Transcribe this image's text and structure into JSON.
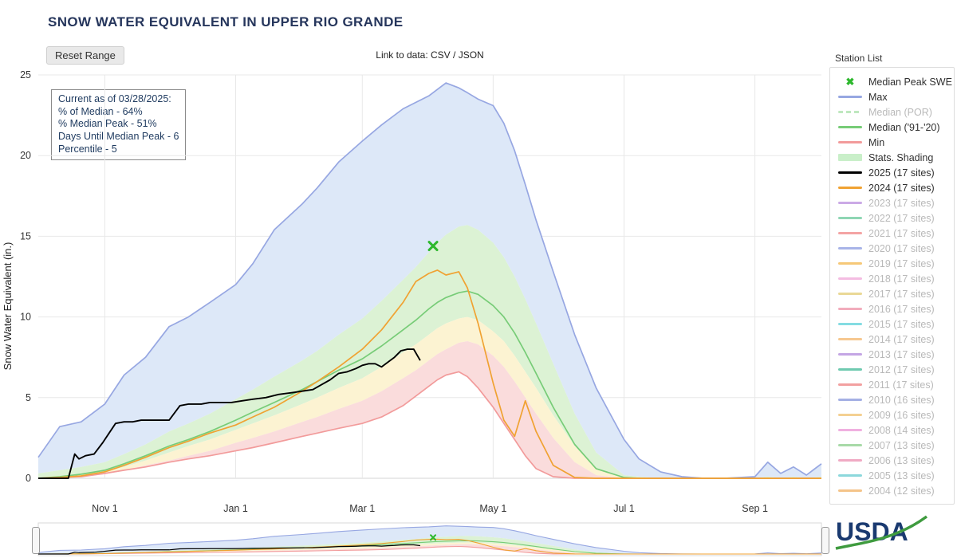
{
  "header": {
    "title": "SNOW WATER EQUIVALENT IN UPPER RIO GRANDE",
    "reset_button": "Reset Range",
    "link_prefix": "Link to data: ",
    "csv_label": "CSV",
    "link_separator": " / ",
    "json_label": "JSON",
    "station_list_label": "Station List"
  },
  "info_box": {
    "lines": [
      "Current as of 03/28/2025:",
      "% of Median - 64%",
      "% Median Peak - 51%",
      "Days Until Median Peak - 6",
      "Percentile - 5"
    ]
  },
  "footer": {
    "logo_text": "USDA"
  },
  "legend": {
    "items": [
      {
        "label": "Median Peak SWE",
        "type": "marker",
        "color": "#2db82d",
        "active": true
      },
      {
        "label": "Max",
        "type": "line",
        "color": "#97a7e2",
        "active": true
      },
      {
        "label": "Median (POR)",
        "type": "dash",
        "color": "#bfe8bf",
        "active": false
      },
      {
        "label": "Median ('91-'20)",
        "type": "line",
        "color": "#77cc77",
        "active": true
      },
      {
        "label": "Min",
        "type": "line",
        "color": "#f29b9b",
        "active": true
      },
      {
        "label": "Stats. Shading",
        "type": "patch",
        "color": "#c9efc9",
        "active": true
      },
      {
        "label": "2025 (17 sites)",
        "type": "line",
        "color": "#000000",
        "active": true
      },
      {
        "label": "2024 (17 sites)",
        "type": "line",
        "color": "#f0a232",
        "active": true
      },
      {
        "label": "2023 (17 sites)",
        "type": "line",
        "color": "#cbaae6",
        "active": false
      },
      {
        "label": "2022 (17 sites)",
        "type": "line",
        "color": "#8fd6b4",
        "active": false
      },
      {
        "label": "2021 (17 sites)",
        "type": "line",
        "color": "#f4a4a4",
        "active": false
      },
      {
        "label": "2020 (17 sites)",
        "type": "line",
        "color": "#a8b4e8",
        "active": false
      },
      {
        "label": "2019 (17 sites)",
        "type": "line",
        "color": "#f6c878",
        "active": false
      },
      {
        "label": "2018 (17 sites)",
        "type": "line",
        "color": "#f4bce2",
        "active": false
      },
      {
        "label": "2017 (17 sites)",
        "type": "line",
        "color": "#ead896",
        "active": false
      },
      {
        "label": "2016 (17 sites)",
        "type": "line",
        "color": "#f2acbc",
        "active": false
      },
      {
        "label": "2015 (17 sites)",
        "type": "line",
        "color": "#84dce2",
        "active": false
      },
      {
        "label": "2014 (17 sites)",
        "type": "line",
        "color": "#f6c890",
        "active": false
      },
      {
        "label": "2013 (17 sites)",
        "type": "line",
        "color": "#c4a6e4",
        "active": false
      },
      {
        "label": "2012 (17 sites)",
        "type": "line",
        "color": "#6fcab0",
        "active": false
      },
      {
        "label": "2011 (17 sites)",
        "type": "line",
        "color": "#f2a0a0",
        "active": false
      },
      {
        "label": "2010 (16 sites)",
        "type": "line",
        "color": "#a4b0e4",
        "active": false
      },
      {
        "label": "2009 (16 sites)",
        "type": "line",
        "color": "#f4d092",
        "active": false
      },
      {
        "label": "2008 (14 sites)",
        "type": "line",
        "color": "#f0b0e0",
        "active": false
      },
      {
        "label": "2007 (13 sites)",
        "type": "line",
        "color": "#a8daa8",
        "active": false
      },
      {
        "label": "2006 (13 sites)",
        "type": "line",
        "color": "#f0aac4",
        "active": false
      },
      {
        "label": "2005 (13 sites)",
        "type": "line",
        "color": "#8cd8dc",
        "active": false
      },
      {
        "label": "2004 (12 sites)",
        "type": "line",
        "color": "#f4c48a",
        "active": false
      }
    ]
  },
  "chart_data": {
    "type": "line",
    "title": "SNOW WATER EQUIVALENT IN UPPER RIO GRANDE",
    "xlabel": "",
    "ylabel": "Snow Water Equivalent (in.)",
    "ylim": [
      0,
      25
    ],
    "y_ticks": [
      0,
      5,
      10,
      15,
      20,
      25
    ],
    "x_unit": "days since Oct 1 (water year)",
    "xlim_days": [
      0,
      365
    ],
    "x_ticks": [
      {
        "day": 31,
        "label": "Nov 1"
      },
      {
        "day": 92,
        "label": "Jan 1"
      },
      {
        "day": 151,
        "label": "Mar 1"
      },
      {
        "day": 212,
        "label": "May 1"
      },
      {
        "day": 273,
        "label": "Jul 1"
      },
      {
        "day": 334,
        "label": "Sep 1"
      }
    ],
    "grid": true,
    "legend_position": "right",
    "median_peak_marker": {
      "day": 184,
      "value": 14.4,
      "color": "#2db82d"
    },
    "days": [
      0,
      10,
      20,
      31,
      40,
      50,
      61,
      70,
      80,
      92,
      100,
      110,
      123,
      130,
      140,
      151,
      160,
      170,
      176,
      182,
      186,
      190,
      196,
      200,
      205,
      212,
      217,
      222,
      227,
      232,
      240,
      250,
      260,
      273,
      280,
      290,
      300,
      310,
      320,
      334,
      340,
      346,
      352,
      358,
      365
    ],
    "bands": [
      {
        "name": "max-to-p70",
        "upper": "max",
        "lower": "p70",
        "color": "#dde8f8"
      },
      {
        "name": "p70-to-p30",
        "upper": "p70",
        "lower": "p30",
        "color": "#dcf2d4"
      },
      {
        "name": "p30-to-p10",
        "upper": "p30",
        "lower": "p10",
        "color": "#fcf3d2"
      },
      {
        "name": "p10-to-min",
        "upper": "p10",
        "lower": "min",
        "color": "#fadcdc"
      }
    ],
    "series": {
      "max": {
        "label": "Max",
        "color": "#97a7e2",
        "width": 1.7,
        "values": [
          1.3,
          3.2,
          3.5,
          4.6,
          6.4,
          7.5,
          9.4,
          10.0,
          10.9,
          12.0,
          13.3,
          15.4,
          17.0,
          18.0,
          19.6,
          20.9,
          21.9,
          22.9,
          23.3,
          23.7,
          24.1,
          24.5,
          24.2,
          23.9,
          23.5,
          23.1,
          22.0,
          20.3,
          18.2,
          16.0,
          12.8,
          8.9,
          5.6,
          2.4,
          1.2,
          0.4,
          0.1,
          0,
          0,
          0.1,
          1.0,
          0.3,
          0.7,
          0.2,
          0.9
        ]
      },
      "p70": {
        "label": "70th percentile band edge",
        "color": "none",
        "width": 0,
        "values": [
          0.3,
          0.5,
          0.7,
          1.0,
          1.5,
          2.1,
          2.9,
          3.4,
          4.0,
          4.9,
          5.5,
          6.3,
          7.3,
          7.9,
          8.9,
          9.9,
          11.0,
          12.3,
          13.1,
          14.0,
          14.6,
          15.1,
          15.6,
          15.7,
          15.4,
          14.6,
          13.7,
          12.5,
          11.1,
          9.6,
          7.1,
          4.0,
          1.6,
          0.2,
          0.1,
          0,
          0,
          0,
          0,
          0,
          0.1,
          0,
          0.1,
          0,
          0.1
        ]
      },
      "p30": {
        "label": "30th percentile band edge",
        "color": "none",
        "width": 0,
        "values": [
          0.05,
          0.1,
          0.2,
          0.4,
          0.7,
          1.1,
          1.6,
          2.0,
          2.4,
          3.0,
          3.4,
          3.9,
          4.6,
          5.0,
          5.6,
          6.2,
          6.9,
          7.8,
          8.3,
          8.9,
          9.3,
          9.6,
          9.9,
          10.0,
          9.8,
          9.1,
          8.5,
          7.6,
          6.6,
          5.6,
          3.9,
          2.0,
          0.6,
          0.05,
          0,
          0,
          0,
          0,
          0,
          0,
          0,
          0,
          0,
          0,
          0
        ]
      },
      "p10": {
        "label": "10th percentile band edge",
        "color": "none",
        "width": 0,
        "values": [
          0,
          0.05,
          0.1,
          0.25,
          0.5,
          0.8,
          1.1,
          1.4,
          1.7,
          2.2,
          2.5,
          2.9,
          3.5,
          3.8,
          4.3,
          4.8,
          5.4,
          6.2,
          6.7,
          7.3,
          7.7,
          8.0,
          8.4,
          8.5,
          8.3,
          7.6,
          6.9,
          6.0,
          5.0,
          4.0,
          2.5,
          1.0,
          0.2,
          0,
          0,
          0,
          0,
          0,
          0,
          0,
          0,
          0,
          0,
          0,
          0
        ]
      },
      "min": {
        "label": "Min",
        "color": "#f29b9b",
        "width": 1.7,
        "values": [
          0,
          0.05,
          0.1,
          0.3,
          0.5,
          0.7,
          1.0,
          1.2,
          1.4,
          1.7,
          1.9,
          2.2,
          2.6,
          2.8,
          3.1,
          3.4,
          3.8,
          4.5,
          5.1,
          5.7,
          6.1,
          6.4,
          6.6,
          6.3,
          5.6,
          4.4,
          3.4,
          2.4,
          1.4,
          0.6,
          0.1,
          0,
          0,
          0,
          0,
          0,
          0,
          0,
          0,
          0,
          0,
          0,
          0,
          0,
          0
        ]
      },
      "median": {
        "label": "Median ('91-'20)",
        "color": "#77cc77",
        "width": 1.7,
        "values": [
          0,
          0.1,
          0.25,
          0.5,
          0.9,
          1.4,
          2.0,
          2.4,
          2.9,
          3.6,
          4.1,
          4.7,
          5.5,
          6.0,
          6.7,
          7.4,
          8.2,
          9.2,
          9.8,
          10.5,
          10.9,
          11.2,
          11.5,
          11.6,
          11.4,
          10.7,
          10.0,
          9.0,
          7.8,
          6.5,
          4.4,
          2.1,
          0.6,
          0.05,
          0,
          0,
          0,
          0,
          0,
          0,
          0,
          0,
          0,
          0,
          0
        ]
      },
      "y2024": {
        "label": "2024 (17 sites)",
        "color": "#f0a232",
        "width": 1.7,
        "values": [
          0,
          0.05,
          0.15,
          0.4,
          0.8,
          1.3,
          1.9,
          2.3,
          2.8,
          3.3,
          3.8,
          4.4,
          5.4,
          6.0,
          6.9,
          8.0,
          9.2,
          10.9,
          12.2,
          12.7,
          12.9,
          12.6,
          12.8,
          11.8,
          9.6,
          5.9,
          3.6,
          2.6,
          4.8,
          2.9,
          0.8,
          0.05,
          0,
          0,
          0,
          0,
          0,
          0,
          0,
          0,
          0,
          0,
          0,
          0,
          0
        ]
      },
      "y2025": {
        "label": "2025 (17 sites)",
        "color": "#000000",
        "width": 1.9,
        "x": [
          0,
          14,
          17,
          19,
          22,
          26,
          30,
          33,
          36,
          40,
          44,
          48,
          53,
          58,
          61,
          66,
          70,
          74,
          76,
          80,
          85,
          90,
          95,
          100,
          106,
          112,
          118,
          123,
          128,
          132,
          136,
          140,
          144,
          148,
          151,
          154,
          157,
          160,
          163,
          166,
          169,
          172,
          175,
          178
        ],
        "values": [
          0,
          0,
          1.5,
          1.2,
          1.4,
          1.5,
          2.2,
          2.8,
          3.4,
          3.5,
          3.5,
          3.6,
          3.6,
          3.6,
          3.6,
          4.5,
          4.6,
          4.6,
          4.6,
          4.7,
          4.7,
          4.7,
          4.8,
          4.9,
          5.0,
          5.2,
          5.3,
          5.4,
          5.5,
          5.8,
          6.1,
          6.5,
          6.6,
          6.8,
          7.0,
          7.1,
          7.1,
          6.9,
          7.2,
          7.5,
          7.9,
          8.0,
          8.0,
          7.3
        ]
      }
    },
    "draw_lines": [
      "max",
      "median",
      "min",
      "y2024",
      "y2025"
    ]
  }
}
